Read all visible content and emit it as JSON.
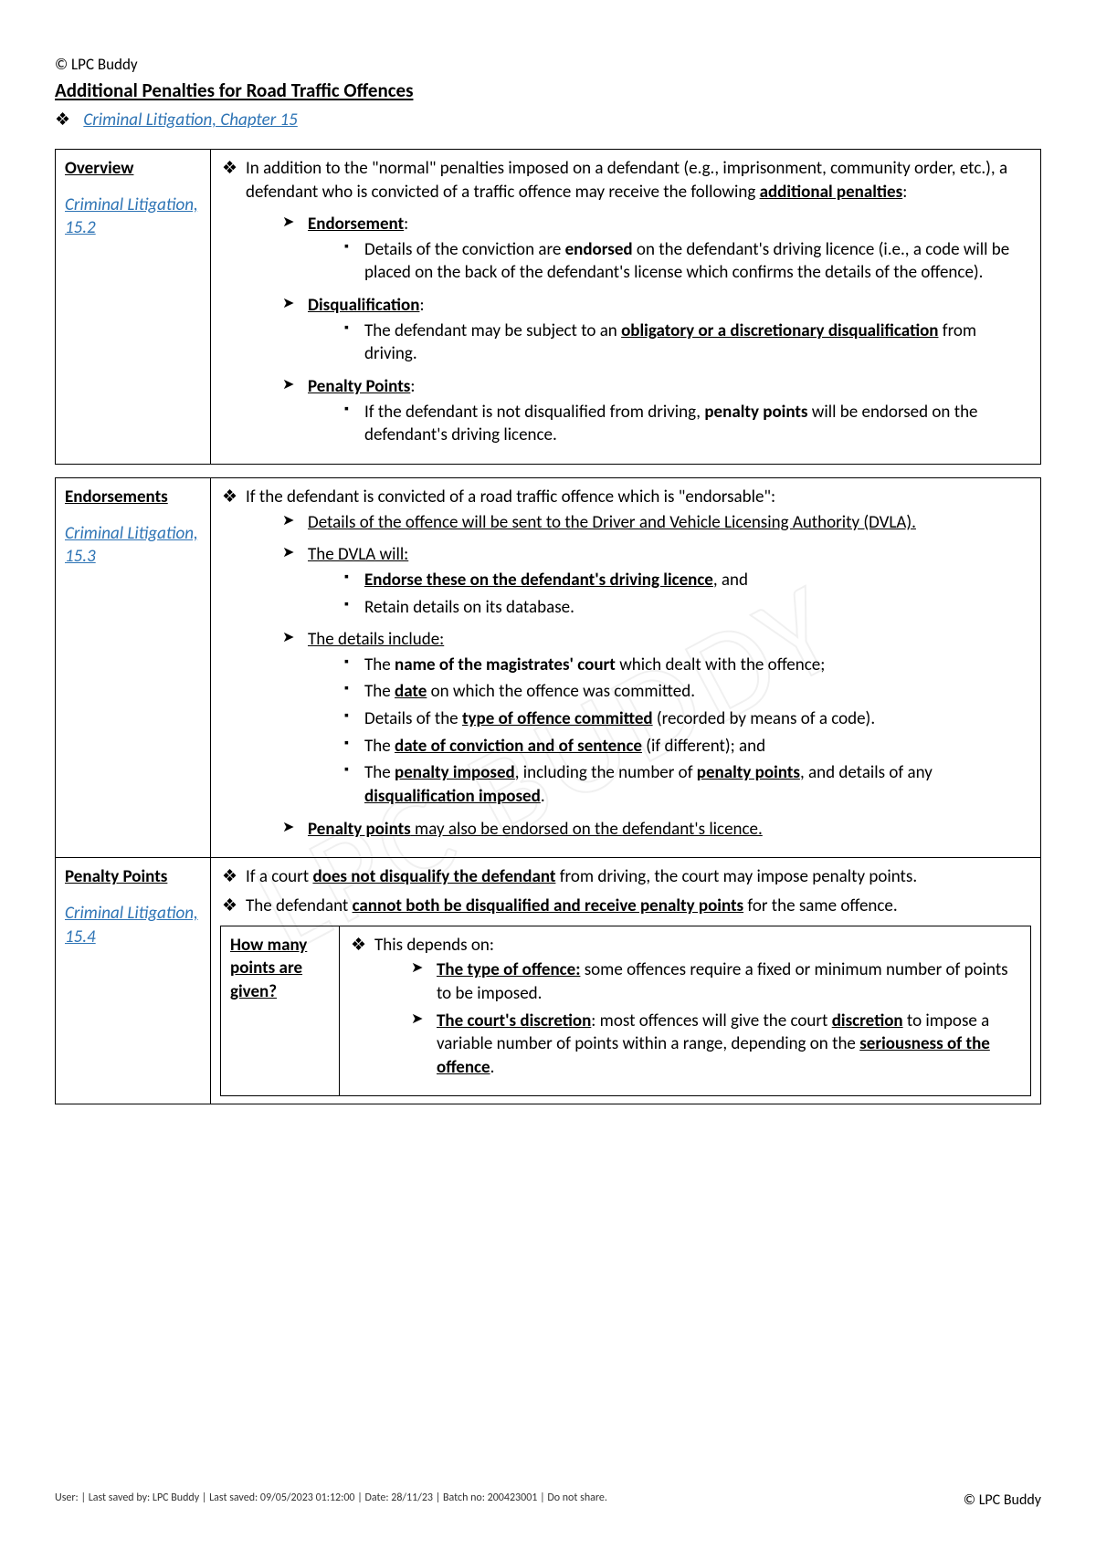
{
  "header": {
    "copyright": "© LPC Buddy",
    "title": "Additional Penalties for Road Traffic Offences",
    "chapter_link": "Criminal Litigation, Chapter 15"
  },
  "watermark": "LPC BUDDY",
  "table1": {
    "left_heading": "Overview",
    "left_ref": "Criminal Litigation, 15.2",
    "intro_pre": "In addition to the \"normal\" penalties imposed on a defendant (e.g., imprisonment, community order, etc.), a defendant who is convicted of a traffic offence may receive the following ",
    "intro_bold": "additional penalties",
    "intro_post": ":",
    "items": [
      {
        "heading": "Endorsement",
        "body_pre": "Details of the conviction are ",
        "body_bold1": "endorsed",
        "body_post": " on the defendant's driving licence (i.e., a code will be placed on the back of the defendant's license which confirms the details of the offence)."
      },
      {
        "heading": "Disqualification",
        "body_pre": "The defendant may be subject to an ",
        "body_bold1": "obligatory or a discretionary disqualification",
        "body_post": " from driving."
      },
      {
        "heading": "Penalty Points",
        "body_pre": "If the defendant is not disqualified from driving, ",
        "body_bold1": "penalty points",
        "body_post": " will be endorsed on the defendant's driving licence."
      }
    ]
  },
  "table2": {
    "row1": {
      "left_heading": "Endorsements",
      "left_ref": "Criminal Litigation, 15.3",
      "intro": "If the defendant is convicted of a road traffic offence which is \"endorsable\":",
      "arrow1": "Details of the offence will be sent to the Driver and Vehicle Licensing Authority (DVLA).",
      "arrow2_heading": "The DVLA will:",
      "dvla_sq1_bold": "Endorse these on the defendant's driving licence",
      "dvla_sq1_post": ", and",
      "dvla_sq2": "Retain details on its database.",
      "arrow3_heading": "The details include:",
      "details": {
        "d1_pre": "The ",
        "d1_bold": "name of the magistrates' court",
        "d1_post": " which dealt with the offence;",
        "d2_pre": "The ",
        "d2_bold": "date",
        "d2_post": " on which the offence was committed.",
        "d3_pre": "Details of the ",
        "d3_bold": "type of offence committed",
        "d3_post": " (recorded by means of a code).",
        "d4_pre": "The ",
        "d4_bold": "date of conviction and of sentence",
        "d4_post": " (if different); and",
        "d5_pre": "The ",
        "d5_bold1": "penalty imposed",
        "d5_mid": ", including the number of ",
        "d5_bold2": "penalty points",
        "d5_mid2": ", and details of any ",
        "d5_bold3": "disqualification imposed",
        "d5_post": "."
      },
      "arrow4_bold": "Penalty points",
      "arrow4_post": " may also be endorsed on the defendant's licence."
    },
    "row2": {
      "left_heading": "Penalty Points",
      "left_ref": "Criminal Litigation, 15.4",
      "d1_pre": "If a court ",
      "d1_bold": "does not disqualify the defendant",
      "d1_post": " from driving, the court may impose penalty points.",
      "d2_pre": "The defendant ",
      "d2_bold": "cannot both be disqualified and receive penalty points",
      "d2_post": " for the same offence.",
      "inner": {
        "left": "How many points are given?",
        "intro": "This depends on:",
        "a1_bold": "The type of offence:",
        "a1_post": " some offences require a fixed or minimum number of points to be imposed.",
        "a2_bold": "The court's discretion",
        "a2_mid1": ": most offences will give the court ",
        "a2_bold2": "discretion",
        "a2_mid2": " to impose a variable number of points within a range, depending on the ",
        "a2_bold3": "seriousness of the offence",
        "a2_post": "."
      }
    }
  },
  "footer": {
    "left": "User:  | Last saved by: LPC Buddy | Last saved: 09/05/2023 01:12:00 | Date: 28/11/23 | Batch no: 200423001 | Do not share.",
    "right": "© LPC Buddy"
  },
  "colors": {
    "link": "#2e74b5",
    "text": "#000000",
    "border": "#000000",
    "background": "#ffffff"
  }
}
